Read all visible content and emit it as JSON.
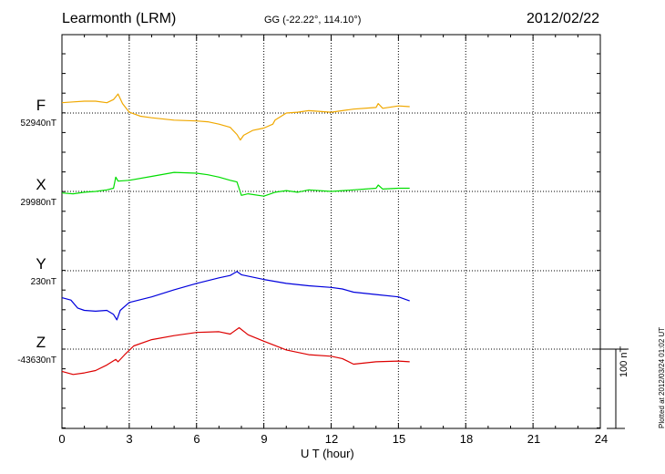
{
  "header": {
    "station": "Learmonth (LRM)",
    "coords": "GG (-22.22°, 114.10°)",
    "date": "2012/02/22",
    "plotted": "Plotted at 2012/03/24 01:02 UT"
  },
  "chart_data": {
    "type": "line",
    "xlabel": "U T (hour)",
    "xlim": [
      0,
      24
    ],
    "xticks": [
      0,
      3,
      6,
      9,
      12,
      15,
      18,
      21,
      24
    ],
    "grid": true,
    "scale_bar": {
      "value": 100,
      "label": "100 nT"
    },
    "series": [
      {
        "name": "F",
        "baseline_label": "52940nT",
        "baseline": 52940,
        "color": "#f0a800",
        "points": [
          [
            0,
            52953
          ],
          [
            0.5,
            52954
          ],
          [
            1,
            52955
          ],
          [
            1.5,
            52955
          ],
          [
            2,
            52953
          ],
          [
            2.3,
            52957
          ],
          [
            2.5,
            52964
          ],
          [
            2.7,
            52952
          ],
          [
            3,
            52941
          ],
          [
            3.5,
            52936
          ],
          [
            4,
            52934
          ],
          [
            5,
            52931
          ],
          [
            6,
            52930
          ],
          [
            6.5,
            52929
          ],
          [
            7,
            52926
          ],
          [
            7.5,
            52922
          ],
          [
            7.8,
            52913
          ],
          [
            7.95,
            52906
          ],
          [
            8.1,
            52912
          ],
          [
            8.5,
            52918
          ],
          [
            9,
            52921
          ],
          [
            9.4,
            52926
          ],
          [
            9.5,
            52931
          ],
          [
            10,
            52940
          ],
          [
            10.5,
            52941
          ],
          [
            11,
            52943
          ],
          [
            12,
            52941
          ],
          [
            13,
            52945
          ],
          [
            14,
            52947
          ],
          [
            14.1,
            52952
          ],
          [
            14.3,
            52946
          ],
          [
            15,
            52949
          ],
          [
            15.5,
            52948
          ]
        ]
      },
      {
        "name": "X",
        "baseline_label": "29980nT",
        "baseline": 29980,
        "color": "#00dd00",
        "points": [
          [
            0,
            29978
          ],
          [
            0.5,
            29977
          ],
          [
            1,
            29979
          ],
          [
            1.5,
            29980
          ],
          [
            2,
            29982
          ],
          [
            2.3,
            29984
          ],
          [
            2.4,
            29998
          ],
          [
            2.5,
            29993
          ],
          [
            3,
            29994
          ],
          [
            4,
            29999
          ],
          [
            5,
            30004
          ],
          [
            6,
            30003
          ],
          [
            6.5,
            30001
          ],
          [
            7,
            29998
          ],
          [
            7.5,
            29994
          ],
          [
            7.8,
            29992
          ],
          [
            8,
            29975
          ],
          [
            8.3,
            29977
          ],
          [
            9,
            29974
          ],
          [
            9.5,
            29979
          ],
          [
            10,
            29981
          ],
          [
            10.5,
            29979
          ],
          [
            11,
            29982
          ],
          [
            12,
            29980
          ],
          [
            13,
            29982
          ],
          [
            14,
            29984
          ],
          [
            14.1,
            29988
          ],
          [
            14.3,
            29983
          ],
          [
            15,
            29984
          ],
          [
            15.5,
            29984
          ]
        ]
      },
      {
        "name": "Y",
        "baseline_label": "230nT",
        "baseline": 230,
        "color": "#0000dd",
        "points": [
          [
            0,
            196
          ],
          [
            0.4,
            193
          ],
          [
            0.7,
            183
          ],
          [
            1,
            180
          ],
          [
            1.5,
            179
          ],
          [
            2,
            180
          ],
          [
            2.3,
            175
          ],
          [
            2.45,
            168
          ],
          [
            2.6,
            180
          ],
          [
            3,
            190
          ],
          [
            4,
            197
          ],
          [
            5,
            206
          ],
          [
            6,
            214
          ],
          [
            7,
            221
          ],
          [
            7.5,
            224
          ],
          [
            7.8,
            229
          ],
          [
            8,
            225
          ],
          [
            9,
            219
          ],
          [
            10,
            214
          ],
          [
            11,
            211
          ],
          [
            12,
            209
          ],
          [
            12.5,
            207
          ],
          [
            13,
            203
          ],
          [
            14,
            200
          ],
          [
            15,
            197
          ],
          [
            15.5,
            192
          ]
        ]
      },
      {
        "name": "Z",
        "baseline_label": "-43630nT",
        "baseline": -43630,
        "color": "#dd0000",
        "points": [
          [
            0,
            -43658
          ],
          [
            0.5,
            -43662
          ],
          [
            1,
            -43660
          ],
          [
            1.5,
            -43657
          ],
          [
            2,
            -43650
          ],
          [
            2.4,
            -43643
          ],
          [
            2.5,
            -43646
          ],
          [
            2.8,
            -43637
          ],
          [
            3.2,
            -43626
          ],
          [
            4,
            -43618
          ],
          [
            5,
            -43613
          ],
          [
            6,
            -43609
          ],
          [
            7,
            -43608
          ],
          [
            7.5,
            -43611
          ],
          [
            7.9,
            -43603
          ],
          [
            8.3,
            -43612
          ],
          [
            9,
            -43620
          ],
          [
            10,
            -43631
          ],
          [
            11,
            -43637
          ],
          [
            12,
            -43639
          ],
          [
            12.5,
            -43642
          ],
          [
            13,
            -43649
          ],
          [
            14,
            -43646
          ],
          [
            15,
            -43645
          ],
          [
            15.5,
            -43646
          ]
        ]
      }
    ]
  }
}
